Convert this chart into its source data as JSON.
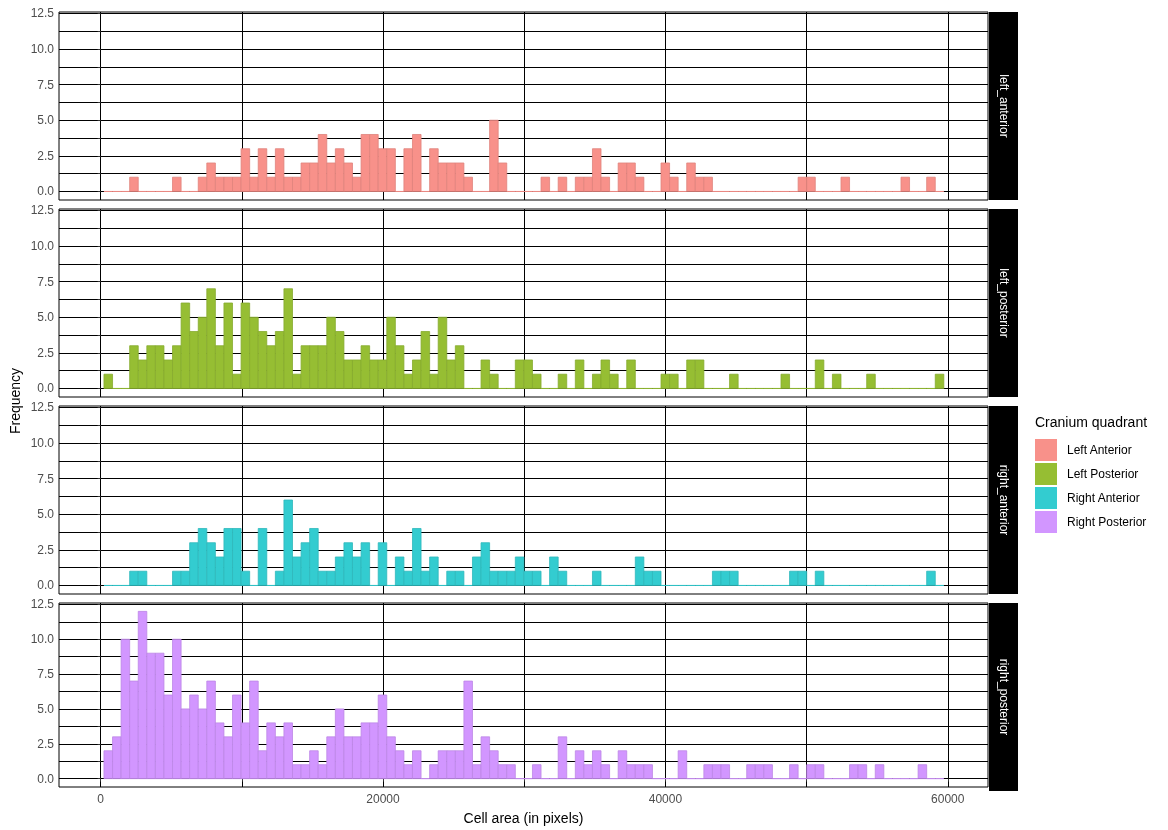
{
  "chart_data": [
    {
      "type": "histogram",
      "y2label": "left_anterior",
      "legend_title": "Cranium quadrant",
      "bins": [
        235,
        842,
        1449,
        2056,
        2663,
        3270,
        3877,
        4484,
        5091,
        5698,
        6305,
        6912,
        7519,
        8126,
        8733,
        9340,
        9947,
        10554,
        11161,
        11768,
        12375,
        12982,
        13589,
        14196,
        14803,
        15410,
        16017,
        16624,
        17231,
        17838,
        18445,
        19052,
        19659,
        20266,
        20873,
        21480,
        22087,
        22694,
        23301,
        23908,
        24515,
        25122,
        25729,
        26336,
        26943,
        27550,
        28157,
        28764,
        29371,
        29978,
        30585,
        31192,
        31799,
        32406,
        33013,
        33620,
        34227,
        34834,
        35441,
        36048,
        36655,
        37262,
        37869,
        38476,
        39083,
        39690,
        40297,
        40904,
        41511,
        42118,
        42725,
        43332,
        43939,
        44546,
        45153,
        45760,
        46367,
        46974,
        47581,
        48188,
        48795,
        49402,
        50009,
        50616,
        51223,
        51830,
        52437,
        53044,
        53651,
        54258,
        54865,
        55472,
        56079,
        56686,
        57293,
        57900,
        58507,
        59114,
        59721
      ],
      "series": [
        {
          "name": "Left Anterior",
          "color": "#f8918a",
          "values": [
            0,
            0,
            0,
            1,
            0,
            0,
            0,
            0,
            1,
            0,
            0,
            1,
            2,
            1,
            1,
            1,
            3,
            1,
            3,
            1,
            3,
            1,
            1,
            2,
            2,
            4,
            2,
            3,
            2,
            1,
            4,
            4,
            3,
            3,
            0,
            3,
            4,
            0,
            3,
            2,
            2,
            2,
            1,
            0,
            0,
            5,
            2,
            0,
            0,
            0,
            0,
            1,
            0,
            1,
            0,
            1,
            1,
            3,
            1,
            0,
            2,
            2,
            1,
            0,
            0,
            2,
            1,
            0,
            2,
            1,
            1,
            0,
            0,
            0,
            0,
            0,
            0,
            0,
            0,
            0,
            0,
            1,
            1,
            0,
            0,
            0,
            1,
            0,
            0,
            0,
            0,
            0,
            0,
            1,
            0,
            0,
            1,
            0
          ]
        }
      ],
      "xlim": [
        -2950,
        62850
      ],
      "xticks": [
        0,
        {
          "value": 10000,
          "label": null
        },
        20000,
        {
          "value": 30000,
          "label": null
        },
        40000,
        {
          "value": 50000,
          "label": null
        },
        60000
      ],
      "ylim": [
        -0.6,
        12.6
      ],
      "yticks": [
        {
          "value": 0,
          "label": "0.0"
        },
        {
          "value": 1.25,
          "label": null
        },
        {
          "value": 2.5,
          "label": "2.5"
        },
        {
          "value": 3.75,
          "label": null
        },
        {
          "value": 5,
          "label": "5.0"
        },
        {
          "value": 6.25,
          "label": null
        },
        {
          "value": 7.5,
          "label": "7.5"
        },
        {
          "value": 8.75,
          "label": null
        },
        {
          "value": 10,
          "label": "10.0"
        },
        {
          "value": 11.25,
          "label": null
        },
        {
          "value": 12.5,
          "label": "12.5"
        }
      ],
      "grid": true,
      "legend": "right",
      "tick_labels": "y"
    },
    {
      "type": "histogram",
      "y2label": "left_posterior",
      "ylabel": "Frequency",
      "bins": [
        235,
        842,
        1449,
        2056,
        2663,
        3270,
        3877,
        4484,
        5091,
        5698,
        6305,
        6912,
        7519,
        8126,
        8733,
        9340,
        9947,
        10554,
        11161,
        11768,
        12375,
        12982,
        13589,
        14196,
        14803,
        15410,
        16017,
        16624,
        17231,
        17838,
        18445,
        19052,
        19659,
        20266,
        20873,
        21480,
        22087,
        22694,
        23301,
        23908,
        24515,
        25122,
        25729,
        26336,
        26943,
        27550,
        28157,
        28764,
        29371,
        29978,
        30585,
        31192,
        31799,
        32406,
        33013,
        33620,
        34227,
        34834,
        35441,
        36048,
        36655,
        37262,
        37869,
        38476,
        39083,
        39690,
        40297,
        40904,
        41511,
        42118,
        42725,
        43332,
        43939,
        44546,
        45153,
        45760,
        46367,
        46974,
        47581,
        48188,
        48795,
        49402,
        50009,
        50616,
        51223,
        51830,
        52437,
        53044,
        53651,
        54258,
        54865,
        55472,
        56079,
        56686,
        57293,
        57900,
        58507,
        59114,
        59721
      ],
      "series": [
        {
          "name": "Left Posterior",
          "color": "#96be33",
          "values": [
            1,
            0,
            0,
            3,
            2,
            3,
            3,
            2,
            3,
            6,
            4,
            5,
            7,
            3,
            6,
            1,
            6,
            5,
            4,
            3,
            4,
            7,
            1,
            3,
            3,
            3,
            5,
            4,
            2,
            2,
            3,
            2,
            2,
            5,
            3,
            1,
            2,
            4,
            1,
            5,
            2,
            3,
            0,
            0,
            2,
            1,
            0,
            0,
            2,
            2,
            1,
            0,
            0,
            1,
            0,
            2,
            0,
            1,
            2,
            1,
            0,
            2,
            0,
            0,
            0,
            1,
            1,
            0,
            2,
            2,
            0,
            0,
            0,
            1,
            0,
            0,
            0,
            0,
            0,
            1,
            0,
            0,
            0,
            2,
            0,
            1,
            0,
            0,
            0,
            1,
            0,
            0,
            0,
            0,
            0,
            0,
            0,
            1
          ]
        }
      ],
      "xlim": [
        -2950,
        62850
      ],
      "xticks": [
        0,
        {
          "value": 10000,
          "label": null
        },
        20000,
        {
          "value": 30000,
          "label": null
        },
        40000,
        {
          "value": 50000,
          "label": null
        },
        60000
      ],
      "ylim": [
        -0.6,
        12.6
      ],
      "yticks": [
        {
          "value": 0,
          "label": "0.0"
        },
        {
          "value": 1.25,
          "label": null
        },
        {
          "value": 2.5,
          "label": "2.5"
        },
        {
          "value": 3.75,
          "label": null
        },
        {
          "value": 5,
          "label": "5.0"
        },
        {
          "value": 6.25,
          "label": null
        },
        {
          "value": 7.5,
          "label": "7.5"
        },
        {
          "value": 8.75,
          "label": null
        },
        {
          "value": 10,
          "label": "10.0"
        },
        {
          "value": 11.25,
          "label": null
        },
        {
          "value": 12.5,
          "label": "12.5"
        }
      ],
      "grid": true,
      "legend": "right",
      "tick_labels": "y"
    },
    {
      "type": "histogram",
      "y2label": "right_anterior",
      "bins": [
        235,
        842,
        1449,
        2056,
        2663,
        3270,
        3877,
        4484,
        5091,
        5698,
        6305,
        6912,
        7519,
        8126,
        8733,
        9340,
        9947,
        10554,
        11161,
        11768,
        12375,
        12982,
        13589,
        14196,
        14803,
        15410,
        16017,
        16624,
        17231,
        17838,
        18445,
        19052,
        19659,
        20266,
        20873,
        21480,
        22087,
        22694,
        23301,
        23908,
        24515,
        25122,
        25729,
        26336,
        26943,
        27550,
        28157,
        28764,
        29371,
        29978,
        30585,
        31192,
        31799,
        32406,
        33013,
        33620,
        34227,
        34834,
        35441,
        36048,
        36655,
        37262,
        37869,
        38476,
        39083,
        39690,
        40297,
        40904,
        41511,
        42118,
        42725,
        43332,
        43939,
        44546,
        45153,
        45760,
        46367,
        46974,
        47581,
        48188,
        48795,
        49402,
        50009,
        50616,
        51223,
        51830,
        52437,
        53044,
        53651,
        54258,
        54865,
        55472,
        56079,
        56686,
        57293,
        57900,
        58507,
        59114,
        59721
      ],
      "series": [
        {
          "name": "Right Anterior",
          "color": "#33ccd0",
          "values": [
            0,
            0,
            0,
            1,
            1,
            0,
            0,
            0,
            1,
            1,
            3,
            4,
            3,
            2,
            4,
            4,
            1,
            0,
            4,
            0,
            1,
            6,
            2,
            3,
            4,
            1,
            1,
            2,
            3,
            2,
            3,
            0,
            3,
            0,
            2,
            1,
            4,
            1,
            2,
            0,
            1,
            1,
            0,
            2,
            3,
            1,
            1,
            1,
            2,
            1,
            1,
            0,
            2,
            1,
            0,
            0,
            0,
            1,
            0,
            0,
            0,
            0,
            2,
            1,
            1,
            0,
            0,
            0,
            0,
            0,
            0,
            1,
            1,
            1,
            0,
            0,
            0,
            0,
            0,
            0,
            1,
            1,
            0,
            1,
            0,
            0,
            0,
            0,
            0,
            0,
            0,
            0,
            0,
            0,
            0,
            0,
            1,
            0
          ]
        }
      ],
      "xlim": [
        -2950,
        62850
      ],
      "xticks": [
        0,
        {
          "value": 10000,
          "label": null
        },
        20000,
        {
          "value": 30000,
          "label": null
        },
        40000,
        {
          "value": 50000,
          "label": null
        },
        60000
      ],
      "ylim": [
        -0.6,
        12.6
      ],
      "yticks": [
        {
          "value": 0,
          "label": "0.0"
        },
        {
          "value": 1.25,
          "label": null
        },
        {
          "value": 2.5,
          "label": "2.5"
        },
        {
          "value": 3.75,
          "label": null
        },
        {
          "value": 5,
          "label": "5.0"
        },
        {
          "value": 6.25,
          "label": null
        },
        {
          "value": 7.5,
          "label": "7.5"
        },
        {
          "value": 8.75,
          "label": null
        },
        {
          "value": 10,
          "label": "10.0"
        },
        {
          "value": 11.25,
          "label": null
        },
        {
          "value": 12.5,
          "label": "12.5"
        }
      ],
      "grid": true,
      "legend": "right",
      "tick_labels": "y"
    },
    {
      "type": "histogram",
      "y2label": "right_posterior",
      "xlabel": "Cell area (in pixels)",
      "bins": [
        235,
        842,
        1449,
        2056,
        2663,
        3270,
        3877,
        4484,
        5091,
        5698,
        6305,
        6912,
        7519,
        8126,
        8733,
        9340,
        9947,
        10554,
        11161,
        11768,
        12375,
        12982,
        13589,
        14196,
        14803,
        15410,
        16017,
        16624,
        17231,
        17838,
        18445,
        19052,
        19659,
        20266,
        20873,
        21480,
        22087,
        22694,
        23301,
        23908,
        24515,
        25122,
        25729,
        26336,
        26943,
        27550,
        28157,
        28764,
        29371,
        29978,
        30585,
        31192,
        31799,
        32406,
        33013,
        33620,
        34227,
        34834,
        35441,
        36048,
        36655,
        37262,
        37869,
        38476,
        39083,
        39690,
        40297,
        40904,
        41511,
        42118,
        42725,
        43332,
        43939,
        44546,
        45153,
        45760,
        46367,
        46974,
        47581,
        48188,
        48795,
        49402,
        50009,
        50616,
        51223,
        51830,
        52437,
        53044,
        53651,
        54258,
        54865,
        55472,
        56079,
        56686,
        57293,
        57900,
        58507,
        59114,
        59721
      ],
      "series": [
        {
          "name": "Right Posterior",
          "color": "#d296ff",
          "values": [
            2,
            3,
            10,
            7,
            12,
            9,
            9,
            6,
            10,
            5,
            6,
            5,
            7,
            4,
            3,
            6,
            4,
            7,
            2,
            4,
            3,
            4,
            1,
            1,
            2,
            1,
            3,
            5,
            3,
            3,
            4,
            4,
            6,
            3,
            2,
            1,
            2,
            0,
            1,
            2,
            2,
            2,
            7,
            1,
            3,
            2,
            1,
            1,
            0,
            0,
            1,
            0,
            0,
            3,
            0,
            2,
            1,
            2,
            1,
            0,
            2,
            1,
            1,
            1,
            0,
            0,
            0,
            2,
            0,
            0,
            1,
            1,
            1,
            0,
            0,
            1,
            1,
            1,
            0,
            0,
            1,
            0,
            1,
            1,
            0,
            0,
            0,
            1,
            1,
            0,
            1,
            0,
            0,
            0,
            0,
            1,
            0,
            0
          ]
        }
      ],
      "xlim": [
        -2950,
        62850
      ],
      "xticks": [
        0,
        {
          "value": 10000,
          "label": null
        },
        20000,
        {
          "value": 30000,
          "label": null
        },
        40000,
        {
          "value": 50000,
          "label": null
        },
        60000
      ],
      "ylim": [
        -0.6,
        12.6
      ],
      "yticks": [
        {
          "value": 0,
          "label": "0.0"
        },
        {
          "value": 1.25,
          "label": null
        },
        {
          "value": 2.5,
          "label": "2.5"
        },
        {
          "value": 3.75,
          "label": null
        },
        {
          "value": 5,
          "label": "5.0"
        },
        {
          "value": 6.25,
          "label": null
        },
        {
          "value": 7.5,
          "label": "7.5"
        },
        {
          "value": 8.75,
          "label": null
        },
        {
          "value": 10,
          "label": "10.0"
        },
        {
          "value": 11.25,
          "label": null
        },
        {
          "value": 12.5,
          "label": "12.5"
        }
      ],
      "grid": true,
      "legend": "right"
    }
  ]
}
